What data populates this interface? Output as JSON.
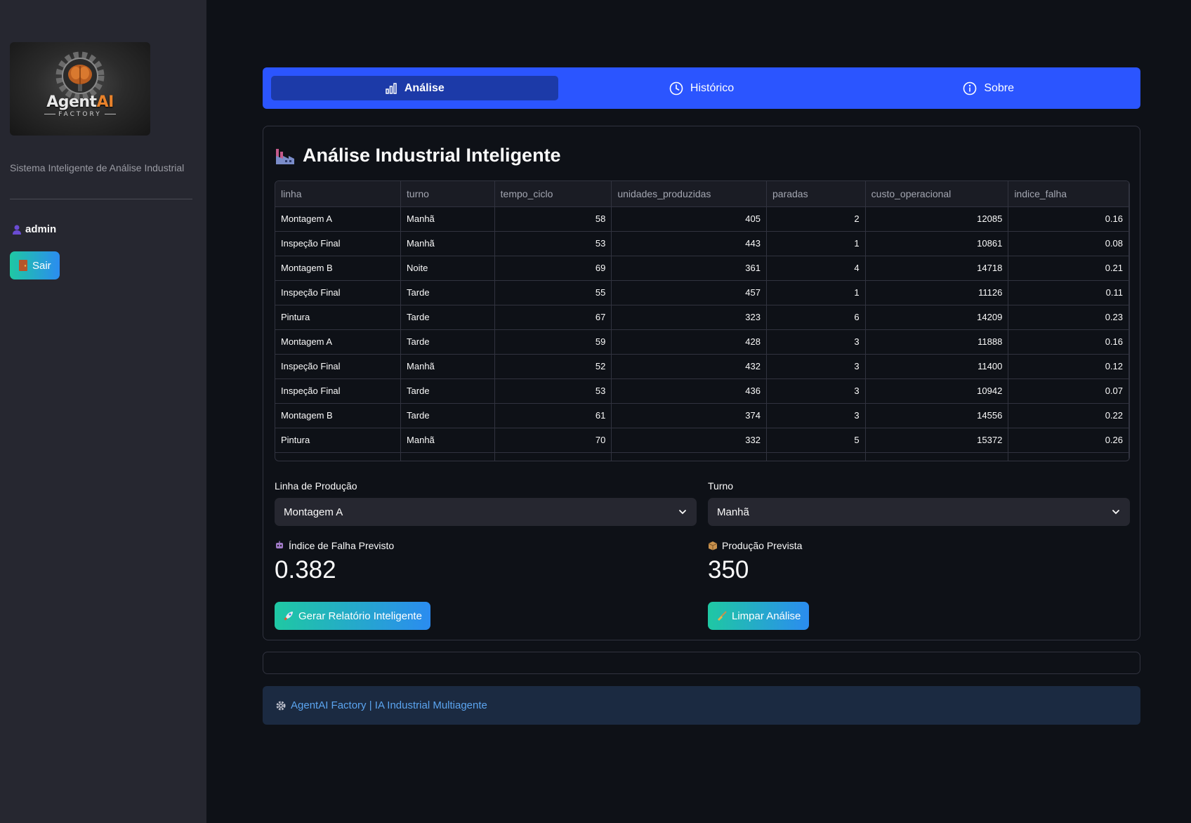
{
  "sidebar": {
    "logo": {
      "brand": "Agent",
      "brand_accent": "AI",
      "sub": "FACTORY"
    },
    "tagline": "Sistema Inteligente de Análise Industrial",
    "user": "admin",
    "logout_label": "Sair",
    "icons": {
      "user": "person-icon",
      "logout": "door-icon"
    }
  },
  "tabs": [
    {
      "label": "Análise",
      "icon": "bar-chart-icon",
      "active": true
    },
    {
      "label": "Histórico",
      "icon": "clock-icon",
      "active": false
    },
    {
      "label": "Sobre",
      "icon": "info-icon",
      "active": false
    }
  ],
  "main": {
    "title": "Análise Industrial Inteligente",
    "title_icon": "factory-icon",
    "table": {
      "columns": [
        "linha",
        "turno",
        "tempo_ciclo",
        "unidades_produzidas",
        "paradas",
        "custo_operacional",
        "indice_falha"
      ],
      "rows": [
        [
          "Montagem A",
          "Manhã",
          "58",
          "405",
          "2",
          "12085",
          "0.16"
        ],
        [
          "Inspeção Final",
          "Manhã",
          "53",
          "443",
          "1",
          "10861",
          "0.08"
        ],
        [
          "Montagem B",
          "Noite",
          "69",
          "361",
          "4",
          "14718",
          "0.21"
        ],
        [
          "Inspeção Final",
          "Tarde",
          "55",
          "457",
          "1",
          "11126",
          "0.11"
        ],
        [
          "Pintura",
          "Tarde",
          "67",
          "323",
          "6",
          "14209",
          "0.23"
        ],
        [
          "Montagem A",
          "Tarde",
          "59",
          "428",
          "3",
          "11888",
          "0.16"
        ],
        [
          "Inspeção Final",
          "Manhã",
          "52",
          "432",
          "3",
          "11400",
          "0.12"
        ],
        [
          "Inspeção Final",
          "Tarde",
          "53",
          "436",
          "3",
          "10942",
          "0.07"
        ],
        [
          "Montagem B",
          "Tarde",
          "61",
          "374",
          "3",
          "14556",
          "0.22"
        ],
        [
          "Pintura",
          "Manhã",
          "70",
          "332",
          "5",
          "15372",
          "0.26"
        ]
      ]
    },
    "line_select": {
      "label": "Linha de Produção",
      "value": "Montagem A"
    },
    "shift_select": {
      "label": "Turno",
      "value": "Manhã"
    },
    "failure_metric": {
      "label": "Índice de Falha Previsto",
      "value": "0.382",
      "icon": "robot-icon"
    },
    "production_metric": {
      "label": "Produção Prevista",
      "value": "350",
      "icon": "package-icon"
    },
    "report_button": {
      "label": "Gerar Relatório Inteligente",
      "icon": "rocket-icon"
    },
    "clear_button": {
      "label": "Limpar Análise",
      "icon": "broom-icon"
    }
  },
  "footer": {
    "text": "AgentAI Factory | IA Industrial Multiagente",
    "icon": "gear-icon"
  },
  "colors": {
    "background": "#0e1117",
    "sidebar": "#262730",
    "tabs": "#2b55ff",
    "accent_gradient": [
      "#1fc8a3",
      "#2b8cf0"
    ],
    "footer_text": "#5ba4ef"
  }
}
